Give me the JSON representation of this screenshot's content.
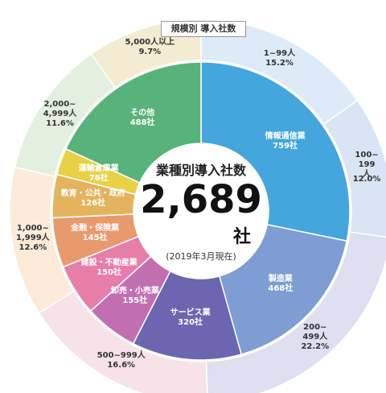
{
  "chart_data": {
    "type": "donut",
    "title": "規模別 導入社数",
    "center": {
      "title": "業種別導入社数",
      "total": "2,689",
      "unit": "社",
      "note": "(2019年3月現在)"
    },
    "outer": {
      "categories": [
        "1~99人",
        "100~\n199人",
        "200~\n499人",
        "500~999人",
        "1,000~\n1,999人",
        "2,000~\n4,999人",
        "5,000人以上"
      ],
      "values": [
        15.2,
        12.0,
        22.2,
        16.6,
        12.6,
        11.6,
        9.7
      ],
      "value_labels": [
        "15.2%",
        "12.0%",
        "22.2%",
        "16.6%",
        "12.6%",
        "11.6%",
        "9.7%"
      ],
      "colors": [
        "#ddebf8",
        "#d9e5f4",
        "#dedff0",
        "#f8e2ea",
        "#fbebd8",
        "#e3f0e0",
        "#f4ebd3"
      ]
    },
    "inner": {
      "categories": [
        "情報通信業",
        "製造業",
        "サービス業",
        "卸売・小売業",
        "建設・不動産業",
        "金融・保険業",
        "教育・公共・政府",
        "運輸倉庫業",
        "その他"
      ],
      "values": [
        759,
        468,
        320,
        155,
        150,
        145,
        126,
        78,
        488
      ],
      "value_labels": [
        "759社",
        "468社",
        "320社",
        "155社",
        "150社",
        "145社",
        "126社",
        "78社",
        "488社"
      ],
      "colors": [
        "#45a6de",
        "#7d9dd3",
        "#6a66b0",
        "#c26fb1",
        "#e67ea9",
        "#e99a6c",
        "#e3b35d",
        "#e9d147",
        "#58b37a"
      ]
    }
  }
}
